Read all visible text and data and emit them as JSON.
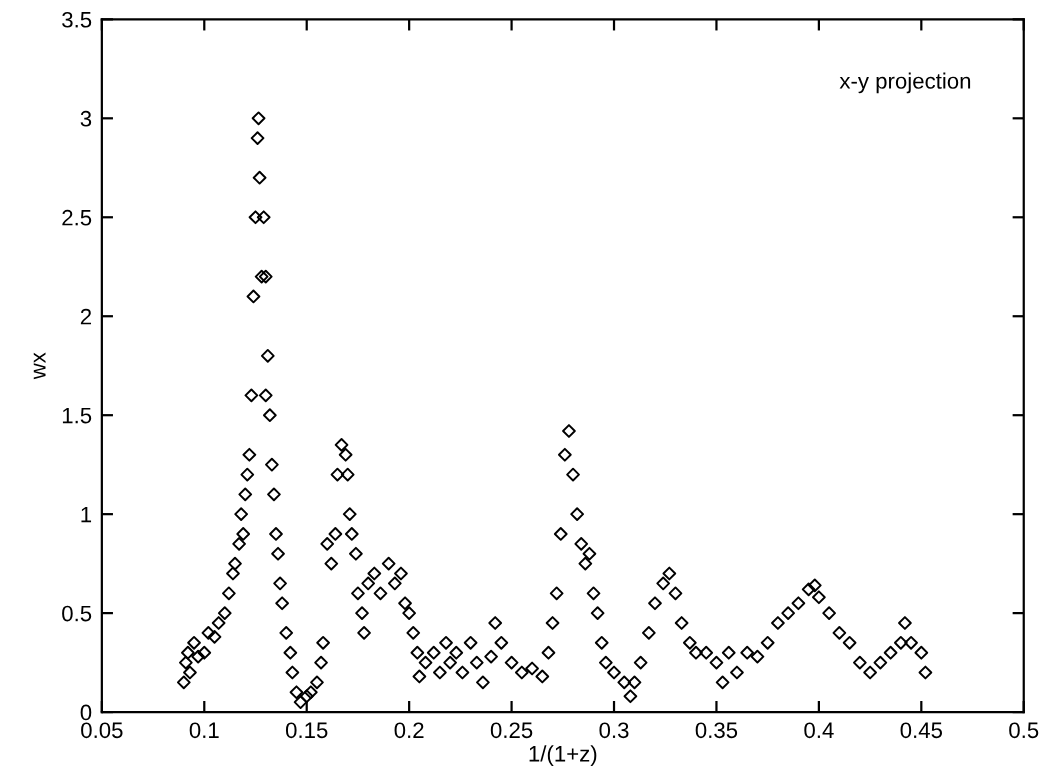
{
  "chart_data": {
    "type": "scatter",
    "xlabel": "1/(1+z)",
    "ylabel": "wx",
    "annotations": [
      "x-y projection"
    ],
    "xlim": [
      0.05,
      0.5
    ],
    "ylim": [
      0,
      3.5
    ],
    "xticks": [
      0.05,
      0.1,
      0.15,
      0.2,
      0.25,
      0.3,
      0.35,
      0.4,
      0.45,
      0.5
    ],
    "yticks": [
      0,
      0.5,
      1,
      1.5,
      2,
      2.5,
      3,
      3.5
    ],
    "grid": false,
    "legend": false,
    "marker": "diamond",
    "series": [
      {
        "color": "#000000",
        "x": [
          0.09,
          0.091,
          0.092,
          0.093,
          0.095,
          0.097,
          0.1,
          0.102,
          0.105,
          0.107,
          0.11,
          0.112,
          0.114,
          0.115,
          0.117,
          0.118,
          0.119,
          0.12,
          0.121,
          0.122,
          0.123,
          0.124,
          0.125,
          0.126,
          0.1265,
          0.127,
          0.128,
          0.129,
          0.13,
          0.131,
          0.13,
          0.132,
          0.133,
          0.134,
          0.135,
          0.136,
          0.137,
          0.138,
          0.14,
          0.142,
          0.143,
          0.145,
          0.147,
          0.15,
          0.152,
          0.155,
          0.157,
          0.158,
          0.16,
          0.162,
          0.164,
          0.165,
          0.167,
          0.169,
          0.17,
          0.171,
          0.172,
          0.174,
          0.175,
          0.177,
          0.178,
          0.18,
          0.183,
          0.186,
          0.19,
          0.193,
          0.196,
          0.198,
          0.2,
          0.202,
          0.204,
          0.205,
          0.208,
          0.212,
          0.215,
          0.218,
          0.22,
          0.223,
          0.226,
          0.23,
          0.233,
          0.236,
          0.24,
          0.242,
          0.245,
          0.25,
          0.255,
          0.26,
          0.265,
          0.268,
          0.27,
          0.272,
          0.274,
          0.276,
          0.278,
          0.28,
          0.282,
          0.284,
          0.286,
          0.288,
          0.29,
          0.292,
          0.294,
          0.296,
          0.3,
          0.305,
          0.308,
          0.31,
          0.313,
          0.317,
          0.32,
          0.324,
          0.327,
          0.33,
          0.333,
          0.337,
          0.34,
          0.345,
          0.35,
          0.353,
          0.356,
          0.36,
          0.365,
          0.37,
          0.375,
          0.38,
          0.385,
          0.39,
          0.395,
          0.398,
          0.4,
          0.405,
          0.41,
          0.415,
          0.42,
          0.425,
          0.43,
          0.435,
          0.44,
          0.442,
          0.445,
          0.45,
          0.452
        ],
        "values": [
          0.15,
          0.25,
          0.3,
          0.2,
          0.35,
          0.28,
          0.3,
          0.4,
          0.38,
          0.45,
          0.5,
          0.6,
          0.7,
          0.75,
          0.85,
          1.0,
          0.9,
          1.1,
          1.2,
          1.3,
          1.6,
          2.1,
          2.5,
          2.9,
          3.0,
          2.7,
          2.2,
          2.5,
          2.2,
          1.8,
          1.6,
          1.5,
          1.25,
          1.1,
          0.9,
          0.8,
          0.65,
          0.55,
          0.4,
          0.3,
          0.2,
          0.1,
          0.05,
          0.08,
          0.1,
          0.15,
          0.25,
          0.35,
          0.85,
          0.75,
          0.9,
          1.2,
          1.35,
          1.3,
          1.2,
          1.0,
          0.9,
          0.8,
          0.6,
          0.5,
          0.4,
          0.65,
          0.7,
          0.6,
          0.75,
          0.65,
          0.7,
          0.55,
          0.5,
          0.4,
          0.3,
          0.18,
          0.25,
          0.3,
          0.2,
          0.35,
          0.25,
          0.3,
          0.2,
          0.35,
          0.25,
          0.15,
          0.28,
          0.45,
          0.35,
          0.25,
          0.2,
          0.22,
          0.18,
          0.3,
          0.45,
          0.6,
          0.9,
          1.3,
          1.42,
          1.2,
          1.0,
          0.85,
          0.75,
          0.8,
          0.6,
          0.5,
          0.35,
          0.25,
          0.2,
          0.15,
          0.08,
          0.15,
          0.25,
          0.4,
          0.55,
          0.65,
          0.7,
          0.6,
          0.45,
          0.35,
          0.3,
          0.3,
          0.25,
          0.15,
          0.3,
          0.2,
          0.3,
          0.28,
          0.35,
          0.45,
          0.5,
          0.55,
          0.62,
          0.64,
          0.58,
          0.5,
          0.4,
          0.35,
          0.25,
          0.2,
          0.25,
          0.3,
          0.35,
          0.45,
          0.35,
          0.3,
          0.2
        ]
      }
    ]
  }
}
